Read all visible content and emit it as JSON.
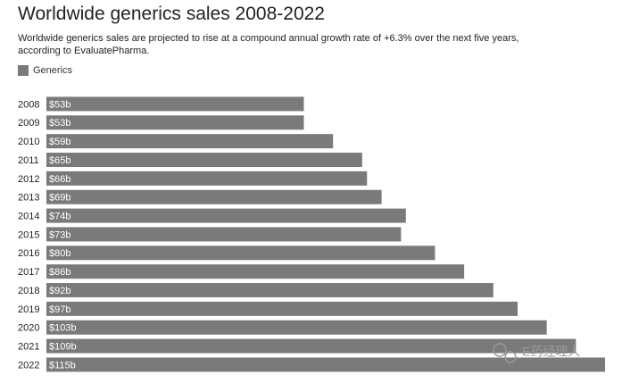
{
  "chart_data": {
    "type": "bar",
    "orientation": "horizontal",
    "title": "Worldwide generics sales 2008-2022",
    "subtitle": "Worldwide generics sales are projected to rise at a compound annual growth rate of +6.3% over the next five years, according to EvaluatePharma.",
    "categories": [
      "2008",
      "2009",
      "2010",
      "2011",
      "2012",
      "2013",
      "2014",
      "2015",
      "2016",
      "2017",
      "2018",
      "2019",
      "2020",
      "2021",
      "2022"
    ],
    "series": [
      {
        "name": "Generics",
        "color": "#7a7a7a",
        "values": [
          53,
          53,
          59,
          65,
          66,
          69,
          74,
          73,
          80,
          86,
          92,
          97,
          103,
          109,
          115
        ],
        "value_labels": [
          "$53b",
          "$53b",
          "$59b",
          "$65b",
          "$66b",
          "$69b",
          "$74b",
          "$73b",
          "$80b",
          "$86b",
          "$92b",
          "$97b",
          "$103b",
          "$109b",
          "$115b"
        ]
      }
    ],
    "annotation": "E药经理人"
  }
}
